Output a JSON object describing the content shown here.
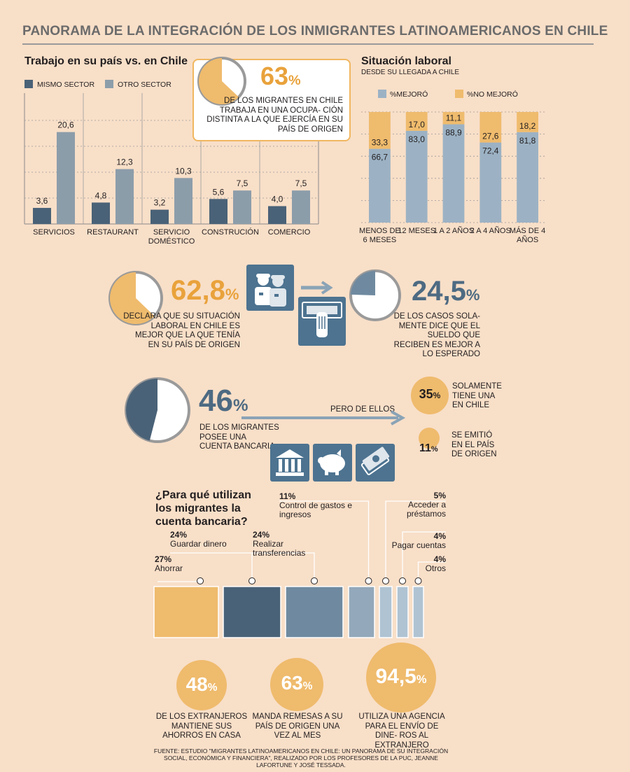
{
  "header": {
    "title": "PANORAMA DE LA INTEGRACIÓN DE LOS INMIGRANTES LATINOAMERICANOS EN CHILE"
  },
  "colors": {
    "dark": "#4a6277",
    "gray": "#8c9daa",
    "light": "#9cb2c4",
    "orange": "#efbb6d",
    "bg": "#f8dfc8"
  },
  "chart_data": [
    {
      "type": "bar",
      "title": "Trabajo en su país vs. en Chile",
      "categories": [
        "SERVICIOS",
        "RESTAURANT",
        "SERVICIO DOMÉSTICO",
        "CONSTRUCIÓN",
        "COMERCIO"
      ],
      "series": [
        {
          "name": "MISMO SECTOR",
          "values": [
            3.6,
            4.8,
            3.2,
            5.6,
            4.0
          ],
          "labels": [
            "3,6",
            "4,8",
            "3,2",
            "5,6",
            "4,0"
          ]
        },
        {
          "name": "OTRO SECTOR",
          "values": [
            20.6,
            12.3,
            10.3,
            7.5,
            7.5
          ],
          "labels": [
            "20,6",
            "12,3",
            "10,3",
            "7,5",
            "7,5"
          ]
        }
      ],
      "ylim": [
        0,
        24
      ]
    },
    {
      "type": "bar",
      "title": "Situación laboral",
      "subtitle": "DESDE SU LLEGADA A CHILE",
      "categories": [
        "MENOS DE 6 MESES",
        "12 MESES",
        "1 A 2 AÑOS",
        "2 A 4 AÑOS",
        "MÁS DE 4 AÑOS"
      ],
      "series": [
        {
          "name": "%MEJORÓ",
          "values": [
            66.7,
            83.0,
            88.9,
            72.4,
            81.8
          ],
          "labels": [
            "66,7",
            "83,0",
            "88,9",
            "72,4",
            "81,8"
          ]
        },
        {
          "name": "%NO MEJORÓ",
          "values": [
            33.3,
            17.0,
            11.1,
            27.6,
            18.2
          ],
          "labels": [
            "33,3",
            "17,0",
            "11,1",
            "27,6",
            "18,2"
          ]
        }
      ],
      "stacked": true,
      "ylim": [
        0,
        100
      ]
    },
    {
      "type": "bar",
      "title": "¿Para qué utilizan los migrantes la cuenta bancaria?",
      "categories": [
        "Ahorrar",
        "Guardar dinero",
        "Realizar transferencias",
        "Control de gastos e ingresos",
        "Acceder a préstamos",
        "Pagar cuentas",
        "Otros"
      ],
      "values": [
        27,
        24,
        24,
        11,
        5,
        4,
        4
      ],
      "labels": [
        "27%",
        "24%",
        "24%",
        "11%",
        "5%",
        "4%",
        "4%"
      ]
    }
  ],
  "callout63": {
    "num": "63",
    "pct": "%",
    "text": "DE LOS MIGRANTES EN CHILE TRABAJA EN UNA OCUPA- CIÓN DISTINTA A LA QUE EJERCÍA EN SU PAÍS DE ORIGEN",
    "fraction": 0.63
  },
  "stat628": {
    "num": "62,8",
    "pct": "%",
    "text": "DECLARA QUE SU SITUACIÓN LABORAL EN CHILE ES MEJOR QUE LA QUE TENÍA EN SU PAÍS DE ORIGEN",
    "fraction": 0.628
  },
  "stat245": {
    "num": "24,5",
    "pct": "%",
    "text": "DE LOS CASOS SOLA- MENTE DICE QUE EL SUELDO QUE RECIBEN ES MEJOR A LO ESPERADO",
    "fraction": 0.245
  },
  "stat46": {
    "num": "46",
    "pct": "%",
    "text": "DE LOS MIGRANTES POSEE UNA CUENTA BANCARIA",
    "fraction": 0.46,
    "arrow_label": "PERO DE ELLOS"
  },
  "sub35": {
    "num": "35",
    "pct": "%",
    "text": "SOLAMENTE TIENE UNA EN CHILE"
  },
  "sub11": {
    "num": "11",
    "pct": "%",
    "text": "SE EMITIÓ EN EL PAÍS DE ORIGEN"
  },
  "bottom": [
    {
      "num": "48",
      "pct": "%",
      "text": "DE LOS EXTRANJEROS MANTIENE SUS AHORROS EN CASA"
    },
    {
      "num": "63",
      "pct": "%",
      "text": "MANDA REMESAS A SU PAÍS DE ORIGEN UNA VEZ AL MES"
    },
    {
      "num": "94,5",
      "pct": "%",
      "text": "UTILIZA UNA AGENCIA PARA EL ENVÍO DE DINE- ROS AL EXTRANJERO"
    }
  ],
  "source": "FUENTE: ESTUDIO \"MIGRANTES LATINOAMERICANOS EN CHILE: UN PANORAMA DE SU INTEGRACIÓN SOCIAL, ECONÓMICA Y FINANCIERA\", REALIZADO POR LOS PROFESORES DE LA PUC, JEANNE LAFORTUNE Y JOSÉ TESSADA.",
  "icons": [
    "workers-icon",
    "salary-hand-icon",
    "bank-icon",
    "piggy-bank-icon",
    "money-icon"
  ]
}
